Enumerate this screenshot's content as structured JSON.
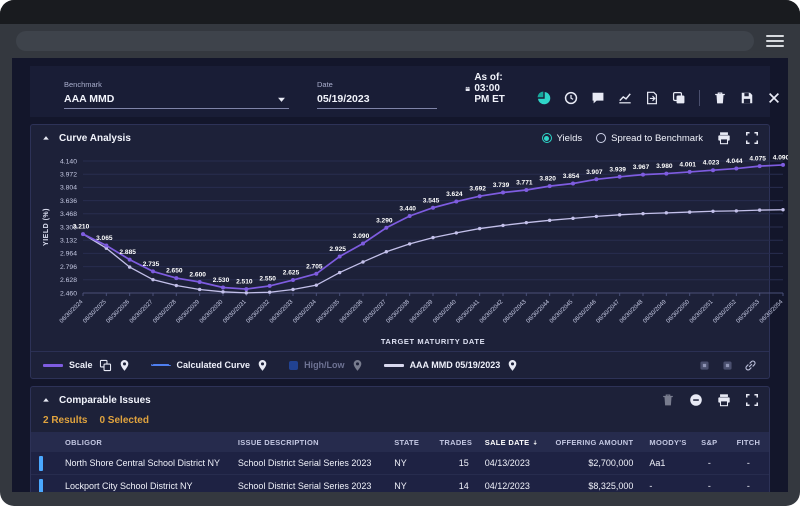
{
  "toolbar": {
    "benchmark_label": "Benchmark",
    "benchmark_value": "AAA MMD",
    "date_label": "Date",
    "date_value": "05/19/2023",
    "as_of": "As of: 03:00 PM ET",
    "icons": [
      "pie-chart",
      "clock",
      "comment",
      "chart-up",
      "export-file",
      "duplicate",
      "divider",
      "trash",
      "save",
      "close"
    ],
    "accent_color": "#2fd5c8"
  },
  "curve_panel": {
    "title": "Curve Analysis",
    "view_options": [
      {
        "label": "Yields",
        "selected": true
      },
      {
        "label": "Spread to Benchmark",
        "selected": false
      }
    ],
    "actions": [
      "print",
      "expand"
    ]
  },
  "chart_data": {
    "type": "line",
    "xlabel": "TARGET MATURITY DATE",
    "ylabel": "YIELD (%)",
    "ylim": [
      2.46,
      4.14
    ],
    "yticks": [
      4.14,
      3.972,
      3.804,
      3.636,
      3.468,
      3.3,
      3.132,
      2.964,
      2.796,
      2.628,
      2.46
    ],
    "grid": true,
    "x": [
      "06/30/2024",
      "06/30/2025",
      "06/30/2026",
      "06/30/2027",
      "06/30/2028",
      "06/30/2029",
      "06/30/2030",
      "06/30/2031",
      "06/30/2032",
      "06/30/2033",
      "06/30/2034",
      "06/30/2035",
      "06/30/2036",
      "06/30/2037",
      "06/30/2038",
      "06/30/2039",
      "06/30/2040",
      "06/30/2041",
      "06/30/2042",
      "06/30/2043",
      "06/30/2044",
      "06/30/2045",
      "06/30/2046",
      "06/30/2047",
      "06/30/2048",
      "06/30/2049",
      "06/30/2050",
      "06/30/2051",
      "06/30/2052",
      "06/30/2053",
      "06/30/2054"
    ],
    "series": [
      {
        "name": "Scale",
        "color": "#7e5ce0",
        "show_labels": true,
        "values": [
          3.21,
          3.065,
          2.885,
          2.735,
          2.65,
          2.6,
          2.53,
          2.51,
          2.55,
          2.625,
          2.705,
          2.925,
          3.09,
          3.29,
          3.44,
          3.545,
          3.624,
          3.692,
          3.739,
          3.771,
          3.82,
          3.854,
          3.907,
          3.939,
          3.967,
          3.98,
          4.001,
          4.023,
          4.044,
          4.075,
          4.09
        ]
      },
      {
        "name": "AAA MMD 05/19/2023",
        "color": "#c3c0ea",
        "show_labels": false,
        "values": [
          3.21,
          3.03,
          2.79,
          2.63,
          2.555,
          2.505,
          2.475,
          2.462,
          2.47,
          2.505,
          2.56,
          2.72,
          2.855,
          2.985,
          3.085,
          3.165,
          3.225,
          3.28,
          3.32,
          3.355,
          3.385,
          3.41,
          3.435,
          3.455,
          3.47,
          3.48,
          3.49,
          3.5,
          3.505,
          3.515,
          3.52
        ]
      }
    ]
  },
  "legend": {
    "items": [
      {
        "label": "Scale",
        "swatch": "line",
        "color": "#7e5ce0",
        "icons": [
          "compare-layers",
          "map-pin"
        ],
        "disabled": false
      },
      {
        "label": "Calculated Curve",
        "swatch": "dash",
        "color": "#4f7ff0",
        "icons": [
          "map-pin"
        ],
        "disabled": false
      },
      {
        "label": "High/Low",
        "swatch": "square",
        "color": "#2563eb",
        "icons": [
          "map-pin"
        ],
        "disabled": true
      },
      {
        "label": "AAA MMD 05/19/2023",
        "swatch": "line",
        "color": "#d8d8ee",
        "icons": [
          "map-pin"
        ],
        "disabled": false
      }
    ],
    "right_icons": [
      "square-btn",
      "square-btn",
      "link"
    ]
  },
  "comparables": {
    "title": "Comparable Issues",
    "results_text": "2 Results",
    "selected_text": "0 Selected",
    "actions": [
      "trash-dim",
      "circle-minus",
      "print",
      "expand"
    ],
    "columns": [
      "OBLIGOR",
      "ISSUE DESCRIPTION",
      "STATE",
      "TRADES",
      "SALE DATE",
      "OFFERING AMOUNT",
      "MOODY'S",
      "S&P",
      "FITCH"
    ],
    "sort_column": "SALE DATE",
    "column_keys": [
      "obligor",
      "issue",
      "state",
      "trades",
      "sale_date",
      "offering_amount",
      "moodys",
      "sp",
      "fitch"
    ],
    "column_align": [
      "left",
      "left",
      "left",
      "right",
      "left",
      "right",
      "left",
      "center",
      "center"
    ],
    "rows": [
      {
        "obligor": "North Shore Central School District NY",
        "issue": "School District Serial Series 2023",
        "state": "NY",
        "trades": "15",
        "sale_date": "04/13/2023",
        "offering_amount": "$2,700,000",
        "moodys": "Aa1",
        "sp": "-",
        "fitch": "-"
      },
      {
        "obligor": "Lockport City School District NY",
        "issue": "School District Serial Series 2023",
        "state": "NY",
        "trades": "14",
        "sale_date": "04/12/2023",
        "offering_amount": "$8,325,000",
        "moodys": "-",
        "sp": "-",
        "fitch": "-"
      }
    ]
  }
}
